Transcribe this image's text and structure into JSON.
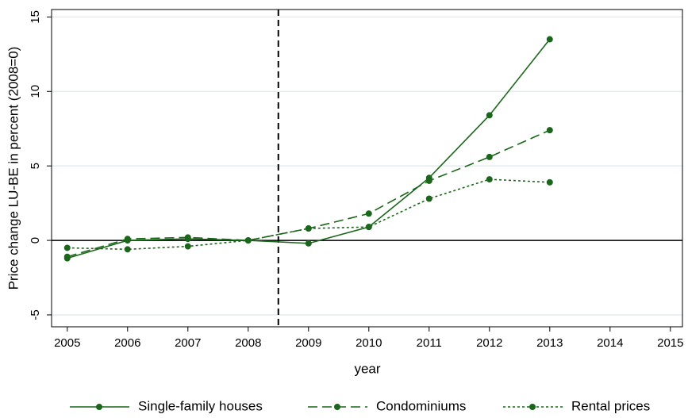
{
  "chart_data": {
    "type": "line",
    "x_label": "year",
    "y_label": "Price change LU-BE in percent (2008=0)",
    "x": [
      2005,
      2006,
      2007,
      2008,
      2009,
      2010,
      2011,
      2012,
      2013
    ],
    "series": [
      {
        "name": "Single-family houses",
        "color": "#1a661a",
        "line_style": "solid",
        "values": [
          -1.2,
          0.0,
          0.1,
          0.0,
          -0.2,
          0.9,
          4.2,
          8.4,
          13.5
        ]
      },
      {
        "name": "Condominiums",
        "color": "#1a661a",
        "line_style": "dash",
        "values": [
          -1.1,
          0.1,
          0.2,
          0.0,
          0.8,
          1.8,
          4.0,
          5.6,
          7.4
        ]
      },
      {
        "name": "Rental prices",
        "color": "#1a661a",
        "line_style": "dot",
        "values": [
          -0.5,
          -0.6,
          -0.4,
          0.0,
          0.8,
          0.9,
          2.8,
          4.1,
          3.9
        ]
      }
    ],
    "xlim": [
      2004.74,
      2015.2
    ],
    "ylim": [
      -5.8,
      15.5
    ],
    "xticks": [
      2005,
      2006,
      2007,
      2008,
      2009,
      2010,
      2011,
      2012,
      2013,
      2014,
      2015
    ],
    "yticks": [
      -5,
      0,
      5,
      10,
      15
    ],
    "grid": true,
    "yline": 0,
    "xline": 2008.5,
    "legend": "bottom"
  }
}
